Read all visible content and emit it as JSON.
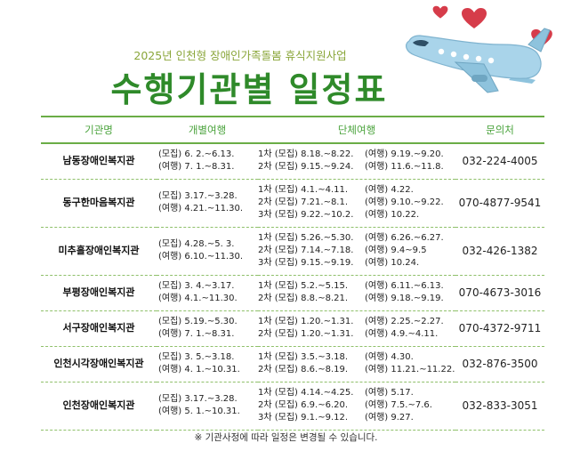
{
  "header": {
    "subtitle": "2025년 인천형 장애인가족돌봄 휴식지원사업",
    "title": "수행기관별 일정표"
  },
  "icons": [
    "heart-icon",
    "airplane-icon"
  ],
  "colors": {
    "accent": "#2f8a2a",
    "light_accent": "#8aa63a",
    "heart": "#d63c4a",
    "plane": "#a9d4ea"
  },
  "table": {
    "headers": [
      "기관명",
      "개별여행",
      "단체여행",
      "문의처"
    ],
    "rows": [
      {
        "org": "남동장애인복지관",
        "individual": [
          "(모집) 6. 2.~6.13.",
          "(여행) 7. 1.~8.31."
        ],
        "group": [
          {
            "recruit": "1차 (모집) 8.18.~8.22.",
            "travel": "(여행) 9.19.~9.20."
          },
          {
            "recruit": "2차 (모집) 9.15.~9.24.",
            "travel": "(여행) 11.6.~11.8."
          }
        ],
        "phone": "032-224-4005"
      },
      {
        "org": "동구한마음복지관",
        "individual": [
          "(모집) 3.17.~3.28.",
          "(여행) 4.21.~11.30."
        ],
        "group": [
          {
            "recruit": "1차 (모집) 4.1.~4.11.",
            "travel": "(여행) 4.22."
          },
          {
            "recruit": "2차 (모집) 7.21.~8.1.",
            "travel": "(여행) 9.10.~9.22."
          },
          {
            "recruit": "3차 (모집) 9.22.~10.2.",
            "travel": "(여행) 10.22."
          }
        ],
        "phone": "070-4877-9541"
      },
      {
        "org": "미추홀장애인복지관",
        "individual": [
          "(모집) 4.28.~5. 3.",
          "(여행) 6.10.~11.30."
        ],
        "group": [
          {
            "recruit": "1차 (모집) 5.26.~5.30.",
            "travel": "(여행) 6.26.~6.27."
          },
          {
            "recruit": "2차 (모집) 7.14.~7.18.",
            "travel": "(여행) 9.4~9.5"
          },
          {
            "recruit": "3차 (모집) 9.15.~9.19.",
            "travel": "(여행) 10.24."
          }
        ],
        "phone": "032-426-1382"
      },
      {
        "org": "부평장애인복지관",
        "individual": [
          "(모집) 3. 4.~3.17.",
          "(여행) 4.1.~11.30."
        ],
        "group": [
          {
            "recruit": "1차 (모집) 5.2.~5.15.",
            "travel": "(여행) 6.11.~6.13."
          },
          {
            "recruit": "2차 (모집) 8.8.~8.21.",
            "travel": "(여행) 9.18.~9.19."
          }
        ],
        "phone": "070-4673-3016"
      },
      {
        "org": "서구장애인복지관",
        "individual": [
          "(모집) 5.19.~5.30.",
          "(여행) 7. 1.~8.31."
        ],
        "group": [
          {
            "recruit": "1차 (모집) 1.20.~1.31.",
            "travel": "(여행) 2.25.~2.27."
          },
          {
            "recruit": "2차 (모집) 1.20.~1.31.",
            "travel": "(여행) 4.9.~4.11."
          }
        ],
        "phone": "070-4372-9711"
      },
      {
        "org": "인천시각장애인복지관",
        "individual": [
          "(모집) 3. 5.~3.18.",
          "(여행) 4. 1.~10.31."
        ],
        "group": [
          {
            "recruit": "1차 (모집) 3.5.~3.18.",
            "travel": "(여행) 4.30."
          },
          {
            "recruit": "2차 (모집) 8.6.~8.19.",
            "travel": "(여행) 11.21.~11.22."
          }
        ],
        "phone": "032-876-3500"
      },
      {
        "org": "인천장애인복지관",
        "individual": [
          "(모집) 3.17.~3.28.",
          "(여행) 5. 1.~10.31."
        ],
        "group": [
          {
            "recruit": "1차 (모집) 4.14.~4.25.",
            "travel": "(여행) 5.17."
          },
          {
            "recruit": "2차 (모집) 6.9.~6.20.",
            "travel": "(여행) 7.5.~7.6."
          },
          {
            "recruit": "3차 (모집) 9.1.~9.12.",
            "travel": "(여행) 9.27."
          }
        ],
        "phone": "032-833-3051"
      }
    ]
  },
  "footnote": "※ 기관사정에 따라 일정은 변경될 수 있습니다."
}
